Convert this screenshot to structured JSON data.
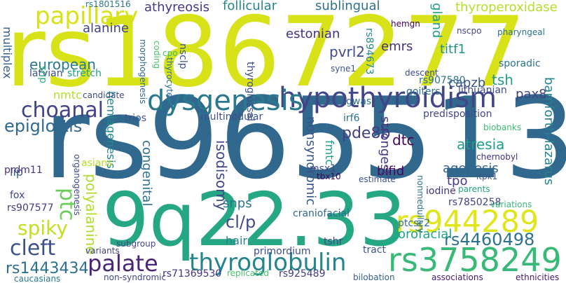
{
  "words": [
    {
      "text": "rs1867277",
      "color": "#d8e219"
    },
    {
      "text": "rs965513",
      "color": "#31688e"
    },
    {
      "text": "9q22.33",
      "color": "#26a784"
    },
    {
      "text": "hypothyroidism",
      "color": "#404688"
    },
    {
      "text": "dysgenesis",
      "color": "#2a788e"
    },
    {
      "text": "rs3758249",
      "color": "#38b977"
    },
    {
      "text": "rs944289",
      "color": "#e1e51b"
    },
    {
      "text": "papillary",
      "color": "#d8e219"
    },
    {
      "text": "choanal",
      "color": "#414487"
    },
    {
      "text": "palate",
      "color": "#482576"
    },
    {
      "text": "thyroglobulin",
      "color": "#25858e"
    },
    {
      "text": "cleft",
      "color": "#3b528b"
    },
    {
      "text": "spiky",
      "color": "#c2df23"
    },
    {
      "text": "epiglottis",
      "color": "#30698e"
    },
    {
      "text": "ptc",
      "color": "#6ccd5a"
    },
    {
      "text": "rs4460498",
      "color": "#2c728e"
    },
    {
      "text": "rs1443434",
      "color": "#2d708e"
    },
    {
      "text": "cl/p",
      "color": "#3e4a89"
    },
    {
      "text": "athyreosis",
      "color": "#443983"
    },
    {
      "text": "follicular",
      "color": "#25848e"
    },
    {
      "text": "sublingual",
      "color": "#2d708e"
    },
    {
      "text": "thyroperoxidase",
      "color": "#b5de2b"
    },
    {
      "text": "alanine",
      "color": "#414487"
    },
    {
      "text": "european",
      "color": "#2a788e"
    },
    {
      "text": "estonian",
      "color": "#46327e"
    },
    {
      "text": "pvrl2",
      "color": "#3e4c8a"
    },
    {
      "text": "emrs",
      "color": "#46307e"
    },
    {
      "text": "titf1",
      "color": "#20928c"
    },
    {
      "text": "tsh",
      "color": "#1f9e89"
    },
    {
      "text": "capzb",
      "color": "#3a548c"
    },
    {
      "text": "pax8",
      "color": "#404387"
    },
    {
      "text": "pde8b",
      "color": "#433d84"
    },
    {
      "text": "dtc",
      "color": "#440154"
    },
    {
      "text": "atresia",
      "color": "#1f9f88"
    },
    {
      "text": "agenesis",
      "color": "#33628d"
    },
    {
      "text": "bifid",
      "color": "#46085c"
    },
    {
      "text": "tpo",
      "color": "#443b84"
    },
    {
      "text": "orofacial",
      "color": "#20a486"
    },
    {
      "text": "multinodular",
      "color": "#3b528b"
    },
    {
      "text": "trios",
      "color": "#3b528b"
    },
    {
      "text": "snps",
      "color": "#2c738e"
    },
    {
      "text": "polyalanine",
      "color": "#b2dd2d"
    },
    {
      "text": "congenital",
      "color": "#2d718e"
    },
    {
      "text": "isodisomy",
      "color": "#404688"
    },
    {
      "text": "nonsyndromic",
      "color": "#3a538b"
    },
    {
      "text": "strongest",
      "color": "#443983"
    },
    {
      "text": "hemiagenesis",
      "color": "#23888e"
    },
    {
      "text": "nmtc",
      "color": "#b5de2b"
    },
    {
      "text": "predisposition",
      "color": "#3f4889"
    },
    {
      "text": "bamforth-lazarus",
      "color": "#25838e"
    },
    {
      "text": "gland",
      "color": "#1f9e89"
    },
    {
      "text": "sporadic",
      "color": "#2d718e"
    },
    {
      "text": "multiplex",
      "color": "#355f8d"
    },
    {
      "text": "lip",
      "color": "#355e8d"
    },
    {
      "text": "fox",
      "color": "#414487"
    },
    {
      "text": "rs907577",
      "color": "#443a83"
    },
    {
      "text": "prdm11",
      "color": "#46337e"
    },
    {
      "text": "hair",
      "color": "#25848e"
    },
    {
      "text": "craniofacial",
      "color": "#31678e"
    },
    {
      "text": "ptcsc2",
      "color": "#2d708e"
    },
    {
      "text": "rs7850258",
      "color": "#414487"
    },
    {
      "text": "tract",
      "color": "#3b528b"
    },
    {
      "text": "rs71369530",
      "color": "#46337e"
    },
    {
      "text": "rs925489",
      "color": "#433e85"
    },
    {
      "text": "caucasians",
      "color": "#2a788e"
    },
    {
      "text": "goiters",
      "color": "#2d708e"
    },
    {
      "text": "lithuanian",
      "color": "#3e4a89"
    },
    {
      "text": "rs907580",
      "color": "#2d718e"
    },
    {
      "text": "rs894673",
      "color": "#24878e"
    },
    {
      "text": "thyroglossal",
      "color": "#3d4d8a"
    },
    {
      "text": "latvian",
      "color": "#3b528b"
    },
    {
      "text": "stretch",
      "color": "#1f9e89"
    },
    {
      "text": "candidate",
      "color": "#3e4c8a"
    },
    {
      "text": "asians",
      "color": "#b8de29"
    },
    {
      "text": "biobanks",
      "color": "#3dbc74"
    },
    {
      "text": "iodine",
      "color": "#46327e"
    },
    {
      "text": "irf6",
      "color": "#2d708e"
    },
    {
      "text": "msx1",
      "color": "#3e4a89"
    },
    {
      "text": "tbx10",
      "color": "#440154"
    },
    {
      "text": "estimate",
      "color": "#3b528b"
    },
    {
      "text": "variations",
      "color": "#3aba76"
    },
    {
      "text": "tshr",
      "color": "#3f4889"
    },
    {
      "text": "primordium",
      "color": "#3e4c8a"
    },
    {
      "text": "associations",
      "color": "#481b6d"
    },
    {
      "text": "ethnicities",
      "color": "#481a6c"
    },
    {
      "text": "bilobation",
      "color": "#355f8d"
    },
    {
      "text": "replicated",
      "color": "#4ac16d"
    },
    {
      "text": "gwas",
      "color": "#2c728e"
    },
    {
      "text": "chernobyl",
      "color": "#46307e"
    },
    {
      "text": "itpk1",
      "color": "#3b528b"
    },
    {
      "text": "descent",
      "color": "#3e4989"
    },
    {
      "text": "syne1",
      "color": "#3b528b"
    },
    {
      "text": "nscpo",
      "color": "#3e4c8a"
    },
    {
      "text": "pharyngeal",
      "color": "#2c728e"
    },
    {
      "text": "hemgn",
      "color": "#440154"
    },
    {
      "text": "rs1801516",
      "color": "#2a788e"
    },
    {
      "text": "cpo",
      "color": "#3dbc74"
    },
    {
      "text": "nsclp",
      "color": "#3b528b"
    },
    {
      "text": "thyrocytes",
      "color": "#2d708e"
    },
    {
      "text": "morphogenesis",
      "color": "#31688e"
    },
    {
      "text": "variants",
      "color": "#414487"
    },
    {
      "text": "subgroup",
      "color": "#3f4889"
    },
    {
      "text": "snp",
      "color": "#29af7f"
    },
    {
      "text": "organogenesis",
      "color": "#3e4989"
    },
    {
      "text": "non-syndromic",
      "color": "#3e4989"
    },
    {
      "text": "parents",
      "color": "#22a884"
    },
    {
      "text": "nonmedullary",
      "color": "#2c738e"
    },
    {
      "text": "coding",
      "color": "#4ac16d"
    },
    {
      "text": "fmtc",
      "color": "#1f9e89"
    }
  ]
}
